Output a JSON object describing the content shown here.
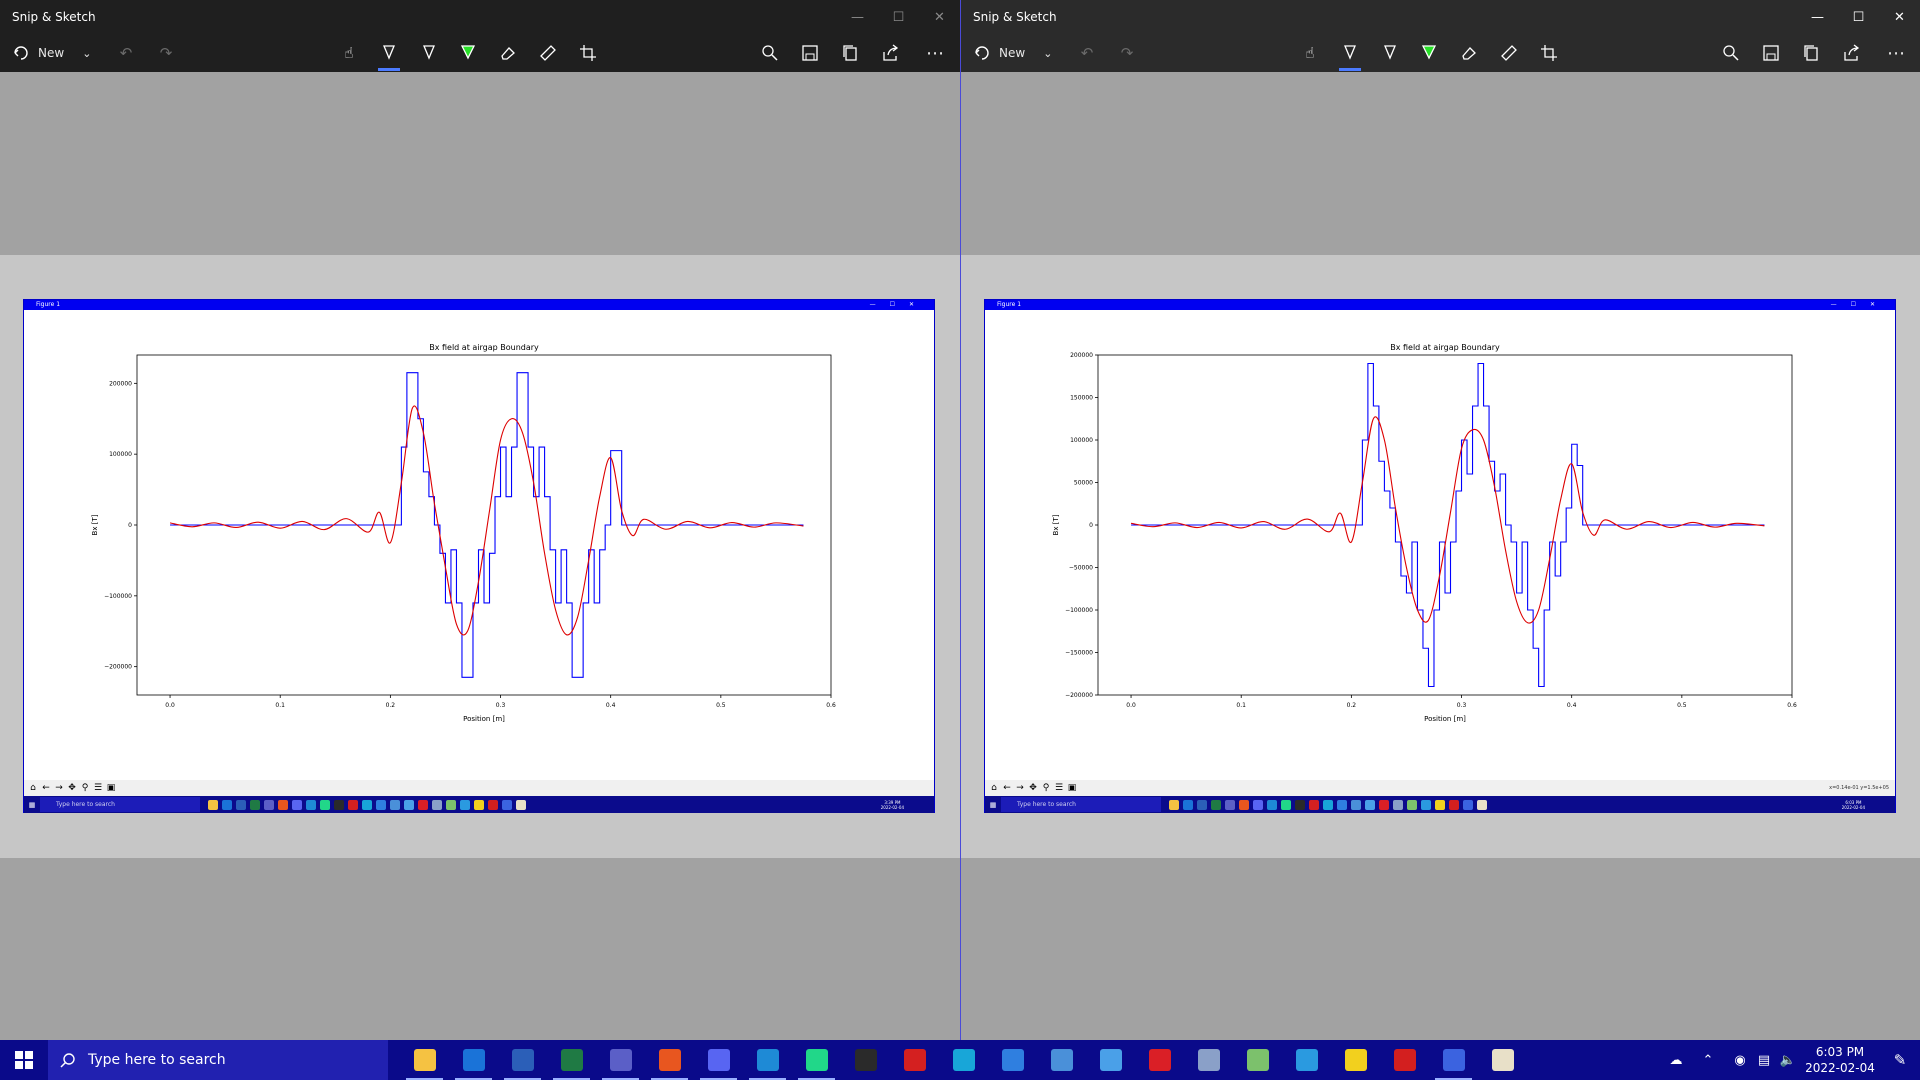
{
  "snip_windows": [
    {
      "title": "Snip & Sketch",
      "new_label": "New",
      "figure": {
        "window_title": "Figure 1",
        "clock": {
          "time": "3:39 PM",
          "date": "2022-02-04"
        },
        "coord_text": "",
        "search_text": "Type here to search"
      }
    },
    {
      "title": "Snip & Sketch",
      "new_label": "New",
      "figure": {
        "window_title": "Figure 1",
        "clock": {
          "time": "6:03 PM",
          "date": "2022-02-04"
        },
        "coord_text": "x=0.14e-01 y=1.5e+05",
        "search_text": "Type here to search"
      }
    }
  ],
  "toolbar_icons": [
    "touch-writing-icon",
    "ballpoint-pen-icon",
    "pencil-icon",
    "highlighter-icon",
    "eraser-icon",
    "ruler-icon",
    "crop-icon",
    "zoom-icon",
    "save-icon",
    "copy-icon",
    "share-icon",
    "more-icon"
  ],
  "chart_data": [
    {
      "type": "line",
      "title": "Bx field at airgap Boundary",
      "xlabel": "Position [m]",
      "ylabel": "Bx [T]",
      "xlim": [
        -0.03,
        0.6
      ],
      "ylim": [
        -240000,
        240000
      ],
      "xticks": [
        "0.0",
        "0.1",
        "0.2",
        "0.3",
        "0.4",
        "0.5",
        "0.6"
      ],
      "xtick_values": [
        0,
        0.1,
        0.2,
        0.3,
        0.4,
        0.5,
        0.6
      ],
      "yticks": [
        "200000",
        "100000",
        "0",
        "−100000",
        "−200000"
      ],
      "ytick_values": [
        200000,
        100000,
        0,
        -100000,
        -200000
      ],
      "series": [
        {
          "color": "#0000ff",
          "style": "step",
          "x": [
            0.0,
            0.205,
            0.21,
            0.215,
            0.22,
            0.225,
            0.23,
            0.235,
            0.24,
            0.245,
            0.25,
            0.255,
            0.26,
            0.265,
            0.27,
            0.275,
            0.28,
            0.285,
            0.29,
            0.295,
            0.3,
            0.305,
            0.31,
            0.315,
            0.32,
            0.325,
            0.33,
            0.335,
            0.34,
            0.345,
            0.35,
            0.355,
            0.36,
            0.365,
            0.37,
            0.375,
            0.38,
            0.385,
            0.39,
            0.395,
            0.4,
            0.405,
            0.41,
            0.575
          ],
          "y": [
            0,
            0,
            110000,
            215000,
            215000,
            150000,
            75000,
            40000,
            0,
            -40000,
            -110000,
            -35000,
            -110000,
            -215000,
            -215000,
            -110000,
            -35000,
            -110000,
            -40000,
            40000,
            110000,
            40000,
            110000,
            215000,
            215000,
            110000,
            40000,
            110000,
            40000,
            -35000,
            -110000,
            -35000,
            -110000,
            -215000,
            -215000,
            -110000,
            -35000,
            -110000,
            -35000,
            0,
            105000,
            105000,
            0,
            0
          ]
        },
        {
          "color": "#dd0000",
          "style": "smooth",
          "x": [
            0.0,
            0.02,
            0.04,
            0.06,
            0.08,
            0.1,
            0.12,
            0.14,
            0.16,
            0.18,
            0.19,
            0.2,
            0.21,
            0.22,
            0.23,
            0.24,
            0.25,
            0.26,
            0.27,
            0.28,
            0.29,
            0.3,
            0.31,
            0.32,
            0.33,
            0.34,
            0.35,
            0.36,
            0.37,
            0.38,
            0.39,
            0.4,
            0.41,
            0.42,
            0.43,
            0.45,
            0.47,
            0.49,
            0.51,
            0.53,
            0.55,
            0.575
          ],
          "y": [
            3000,
            -2500,
            3000,
            -3500,
            4000,
            -4500,
            5000,
            -6500,
            9000,
            -10000,
            18000,
            -25000,
            60000,
            165000,
            130000,
            30000,
            -60000,
            -140000,
            -150000,
            -80000,
            20000,
            120000,
            150000,
            130000,
            60000,
            -40000,
            -120000,
            -155000,
            -130000,
            -50000,
            40000,
            95000,
            20000,
            -15000,
            8000,
            -6000,
            5000,
            -4000,
            3500,
            -3000,
            3000,
            -1500
          ]
        }
      ]
    },
    {
      "type": "line",
      "title": "Bx field at airgap Boundary",
      "xlabel": "Position [m]",
      "ylabel": "Bx [T]",
      "xlim": [
        -0.03,
        0.6
      ],
      "ylim": [
        -200000,
        200000
      ],
      "xticks": [
        "0.0",
        "0.1",
        "0.2",
        "0.3",
        "0.4",
        "0.5",
        "0.6"
      ],
      "xtick_values": [
        0,
        0.1,
        0.2,
        0.3,
        0.4,
        0.5,
        0.6
      ],
      "yticks": [
        "200000",
        "150000",
        "100000",
        "50000",
        "0",
        "−50000",
        "−100000",
        "−150000",
        "−200000"
      ],
      "ytick_values": [
        200000,
        150000,
        100000,
        50000,
        0,
        -50000,
        -100000,
        -150000,
        -200000
      ],
      "series": [
        {
          "color": "#0000ff",
          "style": "step",
          "x": [
            0.0,
            0.205,
            0.21,
            0.215,
            0.22,
            0.225,
            0.23,
            0.235,
            0.24,
            0.245,
            0.25,
            0.255,
            0.26,
            0.265,
            0.27,
            0.275,
            0.28,
            0.285,
            0.29,
            0.295,
            0.3,
            0.305,
            0.31,
            0.315,
            0.32,
            0.325,
            0.33,
            0.335,
            0.34,
            0.345,
            0.35,
            0.355,
            0.36,
            0.365,
            0.37,
            0.375,
            0.38,
            0.385,
            0.39,
            0.395,
            0.4,
            0.405,
            0.41,
            0.575
          ],
          "y": [
            0,
            0,
            100000,
            190000,
            140000,
            75000,
            40000,
            20000,
            -20000,
            -60000,
            -80000,
            -20000,
            -100000,
            -145000,
            -190000,
            -100000,
            -20000,
            -80000,
            -20000,
            40000,
            100000,
            60000,
            140000,
            190000,
            140000,
            75000,
            40000,
            60000,
            0,
            -20000,
            -80000,
            -20000,
            -100000,
            -145000,
            -190000,
            -100000,
            -20000,
            -60000,
            -20000,
            20000,
            95000,
            70000,
            0,
            0
          ]
        },
        {
          "color": "#dd0000",
          "style": "smooth",
          "x": [
            0.0,
            0.02,
            0.04,
            0.06,
            0.08,
            0.1,
            0.12,
            0.14,
            0.16,
            0.18,
            0.19,
            0.2,
            0.21,
            0.22,
            0.23,
            0.24,
            0.25,
            0.26,
            0.27,
            0.28,
            0.29,
            0.3,
            0.31,
            0.32,
            0.33,
            0.34,
            0.35,
            0.36,
            0.37,
            0.38,
            0.39,
            0.4,
            0.41,
            0.42,
            0.43,
            0.45,
            0.47,
            0.49,
            0.51,
            0.53,
            0.55,
            0.575
          ],
          "y": [
            2000,
            -2000,
            2500,
            -3000,
            3000,
            -3500,
            4000,
            -5000,
            7000,
            -8000,
            14000,
            -20000,
            50000,
            125000,
            100000,
            20000,
            -50000,
            -100000,
            -112000,
            -60000,
            15000,
            90000,
            112000,
            100000,
            45000,
            -30000,
            -90000,
            -115000,
            -100000,
            -40000,
            30000,
            72000,
            15000,
            -12000,
            6000,
            -5000,
            4000,
            -3000,
            3000,
            -2500,
            2000,
            -1000
          ]
        }
      ]
    }
  ],
  "taskbar": {
    "search_placeholder": "Type here to search",
    "time": "6:03 PM",
    "date": "2022-02-04",
    "apps": [
      {
        "name": "file-explorer-icon",
        "color": "#f5c242"
      },
      {
        "name": "outlook-icon",
        "color": "#1a73d8"
      },
      {
        "name": "word-icon",
        "color": "#2b5fb8"
      },
      {
        "name": "excel-icon",
        "color": "#1f7a44"
      },
      {
        "name": "teams-icon",
        "color": "#5b5fc7"
      },
      {
        "name": "brave-icon",
        "color": "#e8561f"
      },
      {
        "name": "discord-icon",
        "color": "#5865f2"
      },
      {
        "name": "vscode-icon",
        "color": "#1e8ad6"
      },
      {
        "name": "pycharm-icon",
        "color": "#21d789"
      },
      {
        "name": "terminal-icon",
        "color": "#2a2a2a"
      },
      {
        "name": "flash-app-icon",
        "color": "#d42020"
      },
      {
        "name": "c-app-icon",
        "color": "#18a6d8"
      },
      {
        "name": "sync-app-icon",
        "color": "#2f7fe0"
      },
      {
        "name": "control-panel-icon",
        "color": "#4a90d9"
      },
      {
        "name": "circular-app-icon",
        "color": "#4aa0e8"
      },
      {
        "name": "creative-cloud-icon",
        "color": "#da1f26"
      },
      {
        "name": "device-app-icon",
        "color": "#8aa0c8"
      },
      {
        "name": "notes-app-icon",
        "color": "#7cc16c"
      },
      {
        "name": "building-app-icon",
        "color": "#2a9ae0"
      },
      {
        "name": "sticky-notes-icon",
        "color": "#f2d01e"
      },
      {
        "name": "acrobat-icon",
        "color": "#d31f1f"
      },
      {
        "name": "snip-sketch-icon",
        "color": "#3b63e0"
      },
      {
        "name": "tools-app-icon",
        "color": "#e8e0c8"
      }
    ]
  }
}
